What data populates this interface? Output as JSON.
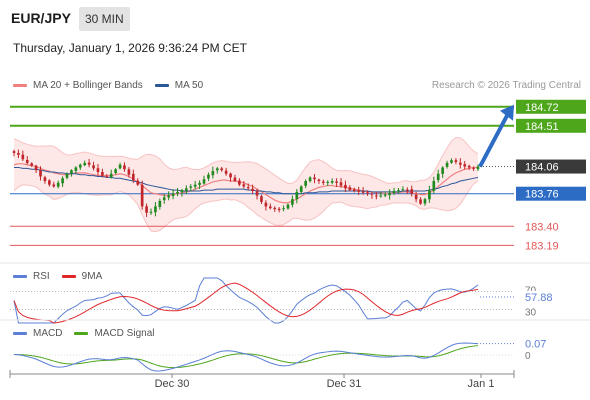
{
  "header": {
    "symbol": "EUR/JPY",
    "timeframe": "30 MIN",
    "datetime": "Thursday, January 1, 2026 9:36:24 PM CET"
  },
  "legend_main": {
    "ma20_label": "MA 20 + Bollinger Bands",
    "ma50_label": "MA 50",
    "credit": "Research © 2026 Trading Central"
  },
  "legend_rsi": {
    "rsi_label": "RSI",
    "ma9_label": "9MA"
  },
  "legend_macd": {
    "macd_label": "MACD",
    "signal_label": "MACD Signal"
  },
  "colors": {
    "green_level": "#4ea61b",
    "blue_level": "#2d6cc4",
    "red_level": "#e3585a",
    "current_box": "#3a3a3a",
    "ma20": "#f08080",
    "ma50": "#2b5797",
    "band_fill": "#fde3e3",
    "candle_up": "#1f8a1f",
    "candle_down": "#c0262b",
    "rsi": "#5b7fd6",
    "rsi_ma9": "#e0262b",
    "macd": "#5b7fd6",
    "macd_signal": "#4ea61b"
  },
  "chart_data": [
    {
      "type": "candlestick",
      "title": "EUR/JPY 30 MIN",
      "x_tick_labels": [
        "Dec 30",
        "Dec 31",
        "Jan 1"
      ],
      "ylim": [
        183.05,
        184.85
      ],
      "current_price": 184.06,
      "levels": [
        {
          "value": 184.72,
          "label": "184.72",
          "kind": "resistance"
        },
        {
          "value": 184.51,
          "label": "184.51",
          "kind": "resistance"
        },
        {
          "value": 183.76,
          "label": "183.76",
          "kind": "pivot"
        },
        {
          "value": 183.4,
          "label": "183.40",
          "kind": "support"
        },
        {
          "value": 183.19,
          "label": "183.19",
          "kind": "support"
        }
      ],
      "projection": {
        "from": 184.06,
        "to": 184.72
      },
      "close": [
        184.21,
        184.19,
        184.14,
        184.1,
        184.07,
        184.02,
        183.95,
        183.9,
        183.86,
        183.84,
        183.88,
        183.93,
        183.98,
        184.02,
        184.05,
        184.08,
        184.1,
        184.08,
        184.04,
        184.0,
        183.96,
        183.95,
        183.98,
        184.03,
        184.08,
        184.03,
        183.97,
        183.91,
        183.86,
        183.62,
        183.55,
        183.56,
        183.62,
        183.68,
        183.72,
        183.74,
        183.76,
        183.78,
        183.8,
        183.82,
        183.84,
        183.86,
        183.88,
        183.92,
        183.97,
        184.01,
        184.04,
        184.02,
        183.98,
        183.94,
        183.9,
        183.86,
        183.84,
        183.82,
        183.79,
        183.74,
        183.67,
        183.62,
        183.6,
        183.59,
        183.58,
        183.6,
        183.64,
        183.7,
        183.78,
        183.84,
        183.9,
        183.94,
        183.92,
        183.9,
        183.88,
        183.89,
        183.9,
        183.88,
        183.85,
        183.82,
        183.8,
        183.79,
        183.78,
        183.77,
        183.76,
        183.75,
        183.74,
        183.74,
        183.75,
        183.77,
        183.79,
        183.8,
        183.81,
        183.8,
        183.76,
        183.7,
        183.65,
        183.7,
        183.8,
        183.9,
        183.98,
        184.05,
        184.1,
        184.13,
        184.11,
        184.08,
        184.06,
        184.05,
        184.04,
        184.06
      ],
      "ma20": [
        184.08,
        184.09,
        184.09,
        184.08,
        184.07,
        184.06,
        184.04,
        184.02,
        184.01,
        183.99,
        183.98,
        183.97,
        183.97,
        183.98,
        183.99,
        183.99,
        183.99,
        183.98,
        183.97,
        183.96,
        183.96,
        183.96,
        183.96,
        183.97,
        183.98,
        183.97,
        183.95,
        183.92,
        183.89,
        183.85,
        183.81,
        183.77,
        183.76,
        183.75,
        183.74,
        183.74,
        183.75,
        183.76,
        183.77,
        183.78,
        183.79,
        183.81,
        183.83,
        183.85,
        183.87,
        183.89,
        183.9,
        183.91,
        183.91,
        183.9,
        183.9,
        183.89,
        183.88,
        183.86,
        183.84,
        183.81,
        183.78,
        183.75,
        183.72,
        183.69,
        183.67,
        183.66,
        183.66,
        183.68,
        183.7,
        183.73,
        183.76,
        183.79,
        183.81,
        183.83,
        183.84,
        183.85,
        183.85,
        183.84,
        183.84,
        183.83,
        183.82,
        183.81,
        183.8,
        183.79,
        183.78,
        183.78,
        183.77,
        183.77,
        183.76,
        183.76,
        183.77,
        183.77,
        183.78,
        183.78,
        183.77,
        183.76,
        183.75,
        183.75,
        183.77,
        183.8,
        183.84,
        183.88,
        183.92,
        183.96,
        183.99,
        184.01,
        184.03,
        184.04,
        184.05,
        184.05
      ],
      "ma50": [
        184.05,
        184.05,
        184.04,
        184.04,
        184.03,
        184.03,
        184.02,
        184.01,
        184.0,
        184.0,
        183.99,
        183.99,
        183.98,
        183.98,
        183.98,
        183.97,
        183.97,
        183.96,
        183.96,
        183.95,
        183.95,
        183.94,
        183.94,
        183.93,
        183.93,
        183.92,
        183.91,
        183.9,
        183.89,
        183.88,
        183.86,
        183.85,
        183.84,
        183.83,
        183.82,
        183.81,
        183.8,
        183.8,
        183.79,
        183.79,
        183.79,
        183.79,
        183.79,
        183.8,
        183.8,
        183.8,
        183.81,
        183.81,
        183.81,
        183.81,
        183.81,
        183.81,
        183.81,
        183.8,
        183.8,
        183.79,
        183.79,
        183.78,
        183.78,
        183.77,
        183.77,
        183.76,
        183.76,
        183.76,
        183.76,
        183.76,
        183.77,
        183.77,
        183.77,
        183.78,
        183.78,
        183.78,
        183.79,
        183.79,
        183.79,
        183.79,
        183.79,
        183.79,
        183.79,
        183.79,
        183.79,
        183.78,
        183.78,
        183.78,
        183.78,
        183.78,
        183.78,
        183.78,
        183.79,
        183.79,
        183.79,
        183.79,
        183.79,
        183.79,
        183.8,
        183.81,
        183.82,
        183.84,
        183.85,
        183.87,
        183.88,
        183.9,
        183.91,
        183.92,
        183.93,
        183.94
      ]
    },
    {
      "type": "line",
      "title": "RSI",
      "series": [
        {
          "name": "RSI",
          "last": 57.88
        },
        {
          "name": "9MA"
        }
      ],
      "axis_labels": [
        "70",
        "57.88",
        "30"
      ],
      "ylim": [
        20,
        80
      ]
    },
    {
      "type": "line",
      "title": "MACD",
      "series": [
        {
          "name": "MACD",
          "last": 0.07
        },
        {
          "name": "MACD Signal"
        }
      ],
      "axis_labels": [
        "0.07",
        "0"
      ]
    }
  ]
}
